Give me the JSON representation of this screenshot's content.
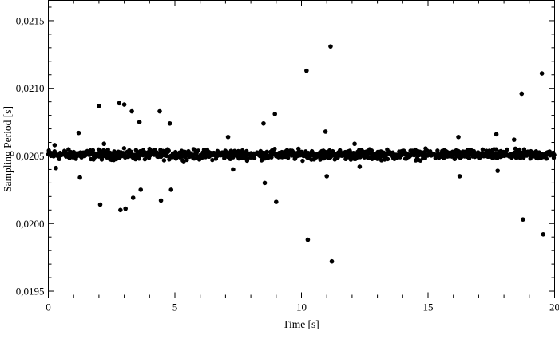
{
  "chart_data": {
    "type": "scatter",
    "title": "",
    "xlabel": "Time [s]",
    "ylabel": "Sampling Period [s]",
    "xlim": [
      0,
      20
    ],
    "ylim": [
      0.01945,
      0.02165
    ],
    "x_ticks": [
      0,
      5,
      10,
      15,
      20
    ],
    "x_tick_labels": [
      "0",
      "5",
      "10",
      "15",
      "20"
    ],
    "y_ticks": [
      0.0195,
      0.02,
      0.0205,
      0.021,
      0.0215
    ],
    "y_tick_labels": [
      "0,0195",
      "0,0200",
      "0,0205",
      "0,0210",
      "0,0215"
    ],
    "grid": false,
    "legend": "none",
    "marker_color": "#000000",
    "band": {
      "x_start": 0.0,
      "x_end": 20.0,
      "step": 0.0205,
      "center": 0.02051,
      "half_width": 3.3e-05
    },
    "series": [
      {
        "values": [
          [
            0.25,
            0.02058
          ],
          [
            0.3,
            0.02041
          ],
          [
            1.2,
            0.02067
          ],
          [
            1.25,
            0.02034
          ],
          [
            2.0,
            0.02087
          ],
          [
            2.05,
            0.02014
          ],
          [
            2.2,
            0.02059
          ],
          [
            2.8,
            0.02089
          ],
          [
            2.85,
            0.0201
          ],
          [
            3.0,
            0.02088
          ],
          [
            3.05,
            0.02011
          ],
          [
            3.3,
            0.02083
          ],
          [
            3.35,
            0.02019
          ],
          [
            3.6,
            0.02075
          ],
          [
            3.65,
            0.02025
          ],
          [
            4.4,
            0.02083
          ],
          [
            4.45,
            0.02017
          ],
          [
            4.8,
            0.02074
          ],
          [
            4.85,
            0.02025
          ],
          [
            7.1,
            0.02064
          ],
          [
            7.3,
            0.0204
          ],
          [
            8.5,
            0.02074
          ],
          [
            8.55,
            0.0203
          ],
          [
            8.95,
            0.02081
          ],
          [
            9.0,
            0.02016
          ],
          [
            10.2,
            0.02113
          ],
          [
            10.25,
            0.01988
          ],
          [
            10.95,
            0.02068
          ],
          [
            11.0,
            0.02035
          ],
          [
            11.15,
            0.02131
          ],
          [
            11.2,
            0.01972
          ],
          [
            12.1,
            0.02059
          ],
          [
            12.3,
            0.02042
          ],
          [
            16.2,
            0.02064
          ],
          [
            16.25,
            0.02035
          ],
          [
            17.7,
            0.02066
          ],
          [
            17.75,
            0.02039
          ],
          [
            18.4,
            0.02062
          ],
          [
            18.7,
            0.02096
          ],
          [
            18.75,
            0.02003
          ],
          [
            19.5,
            0.02111
          ],
          [
            19.55,
            0.01992
          ]
        ]
      }
    ]
  }
}
